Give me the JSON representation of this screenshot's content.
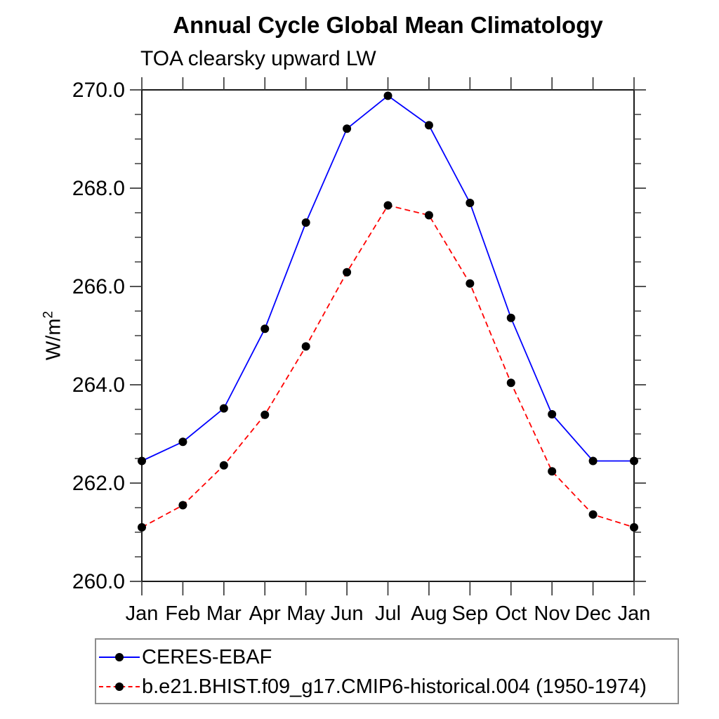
{
  "title": "Annual Cycle Global Mean Climatology",
  "subtitle": "TOA clearsky upward LW",
  "chart_data": {
    "type": "line",
    "categories": [
      "Jan",
      "Feb",
      "Mar",
      "Apr",
      "May",
      "Jun",
      "Jul",
      "Aug",
      "Sep",
      "Oct",
      "Nov",
      "Dec",
      "Jan"
    ],
    "series": [
      {
        "name": "CERES-EBAF",
        "color": "#0000ff",
        "style": "solid",
        "marker": "filled-black-circle",
        "values": [
          262.45,
          262.84,
          263.52,
          265.14,
          267.3,
          269.21,
          269.88,
          269.28,
          267.7,
          265.36,
          263.4,
          262.45,
          262.45
        ]
      },
      {
        "name": "b.e21.BHIST.f09_g17.CMIP6-historical.004 (1950-1974)",
        "color": "#ff0000",
        "style": "dashed",
        "marker": "filled-black-circle",
        "values": [
          261.1,
          261.55,
          262.36,
          263.39,
          264.78,
          266.29,
          267.65,
          267.45,
          266.06,
          264.04,
          262.24,
          261.36,
          261.1
        ]
      }
    ],
    "xlabel": "",
    "ylabel_base": "W/m",
    "ylabel_exp": "2",
    "ylim": [
      260.0,
      270.0
    ],
    "yticks": [
      260.0,
      262.0,
      264.0,
      266.0,
      268.0,
      270.0
    ],
    "ytick_labels": [
      "260.0",
      "262.0",
      "264.0",
      "266.0",
      "268.0",
      "270.0"
    ],
    "minor_tick_interval": 0.5,
    "grid": false,
    "legend_position": "bottom-left",
    "colors": {
      "axis": "#1a1a1a",
      "tick": "#3c3c3c",
      "marker": "#000000",
      "legend_border": "#8d8d8d"
    }
  }
}
